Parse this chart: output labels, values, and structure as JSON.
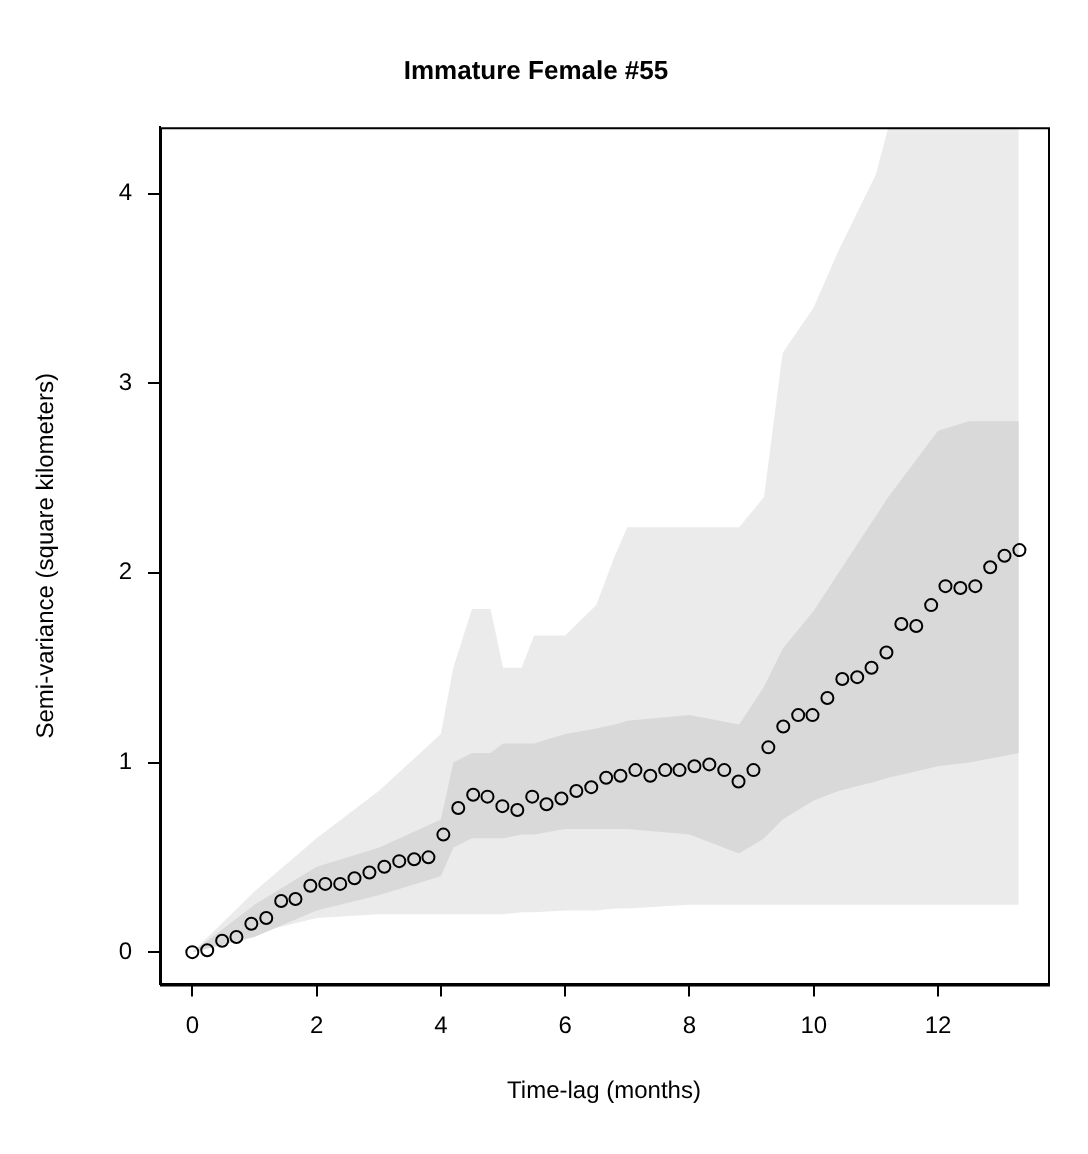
{
  "chart_data": {
    "type": "scatter",
    "title": "Immature Female #55",
    "xlabel": "Time-lag (months)",
    "ylabel": "Semi-variance (square kilometers)",
    "xlim": [
      -0.52,
      13.77
    ],
    "ylim": [
      -0.17,
      4.35
    ],
    "xticks": [
      0,
      2,
      4,
      6,
      8,
      10,
      12
    ],
    "yticks": [
      0,
      1,
      2,
      3,
      4
    ],
    "grid": false,
    "legend": false,
    "marker": "circle",
    "series": [
      {
        "type": "area",
        "color": "#ebebeb",
        "values": [
          null,
          null,
          null,
          null,
          null,
          null,
          null,
          null,
          null,
          null,
          null,
          null,
          null,
          null,
          null,
          null,
          null,
          null,
          null,
          null,
          null,
          null,
          null,
          null,
          null,
          null
        ],
        "x": [
          0,
          1,
          2,
          3,
          4,
          4.2,
          4.5,
          4.8,
          5.0,
          5.3,
          5.5,
          6.0,
          6.5,
          6.8,
          7.0,
          8.0,
          8.8,
          9.2,
          9.5,
          10.0,
          10.4,
          11.0,
          11.2,
          12.0,
          12.5,
          13.3
        ],
        "lower": [
          0,
          0.1,
          0.18,
          0.2,
          0.2,
          0.2,
          0.2,
          0.2,
          0.2,
          0.21,
          0.21,
          0.22,
          0.22,
          0.23,
          0.23,
          0.25,
          0.25,
          0.25,
          0.25,
          0.25,
          0.25,
          0.25,
          0.25,
          0.25,
          0.25,
          0.25
        ],
        "upper": [
          0,
          0.32,
          0.6,
          0.85,
          1.15,
          1.5,
          1.81,
          1.81,
          1.5,
          1.5,
          1.67,
          1.67,
          1.83,
          2.09,
          2.24,
          2.24,
          2.24,
          2.4,
          3.16,
          3.4,
          3.7,
          4.1,
          4.35,
          4.35,
          4.35,
          4.35
        ]
      },
      {
        "type": "area",
        "color": "#d9d9d9",
        "values": [
          null,
          null,
          null,
          null,
          null,
          null,
          null,
          null,
          null,
          null,
          null,
          null,
          null,
          null,
          null,
          null,
          null,
          null,
          null,
          null,
          null,
          null,
          null,
          null,
          null,
          null
        ],
        "x": [
          0,
          1,
          2,
          3,
          4,
          4.2,
          4.5,
          4.8,
          5.0,
          5.3,
          5.5,
          6.0,
          6.5,
          6.8,
          7.0,
          8.0,
          8.8,
          9.2,
          9.5,
          10.0,
          10.4,
          11.0,
          11.2,
          12.0,
          12.5,
          13.3
        ],
        "lower": [
          0,
          0.08,
          0.22,
          0.3,
          0.4,
          0.55,
          0.6,
          0.6,
          0.6,
          0.62,
          0.62,
          0.65,
          0.65,
          0.65,
          0.65,
          0.62,
          0.52,
          0.6,
          0.7,
          0.8,
          0.85,
          0.9,
          0.92,
          0.98,
          1.0,
          1.05
        ],
        "upper": [
          0,
          0.25,
          0.45,
          0.55,
          0.7,
          1.0,
          1.05,
          1.05,
          1.1,
          1.1,
          1.1,
          1.15,
          1.18,
          1.2,
          1.22,
          1.25,
          1.2,
          1.4,
          1.6,
          1.8,
          2.0,
          2.3,
          2.4,
          2.75,
          2.8,
          2.8
        ]
      },
      {
        "color": "#000000",
        "x": [
          0,
          0.24,
          0.48,
          0.71,
          0.95,
          1.19,
          1.43,
          1.66,
          1.9,
          2.14,
          2.38,
          2.61,
          2.85,
          3.09,
          3.33,
          3.57,
          3.8,
          4.04,
          4.28,
          4.52,
          4.75,
          4.99,
          5.23,
          5.47,
          5.7,
          5.94,
          6.18,
          6.42,
          6.66,
          6.89,
          7.13,
          7.37,
          7.61,
          7.84,
          8.08,
          8.32,
          8.56,
          8.79,
          9.03,
          9.27,
          9.51,
          9.75,
          9.98,
          10.22,
          10.46,
          10.7,
          10.93,
          11.17,
          11.41,
          11.65,
          11.89,
          12.12,
          12.36,
          12.6,
          12.84,
          13.07,
          13.31
        ],
        "values": [
          0,
          0.01,
          0.06,
          0.08,
          0.15,
          0.18,
          0.27,
          0.28,
          0.35,
          0.36,
          0.36,
          0.39,
          0.42,
          0.45,
          0.48,
          0.49,
          0.5,
          0.62,
          0.76,
          0.83,
          0.82,
          0.77,
          0.75,
          0.82,
          0.78,
          0.81,
          0.85,
          0.87,
          0.92,
          0.93,
          0.96,
          0.93,
          0.96,
          0.96,
          0.98,
          0.99,
          0.96,
          0.9,
          0.96,
          1.08,
          1.19,
          1.25,
          1.25,
          1.34,
          1.44,
          1.45,
          1.5,
          1.58,
          1.73,
          1.72,
          1.83,
          1.93,
          1.92,
          1.93,
          2.03,
          2.09,
          2.12
        ]
      }
    ]
  }
}
